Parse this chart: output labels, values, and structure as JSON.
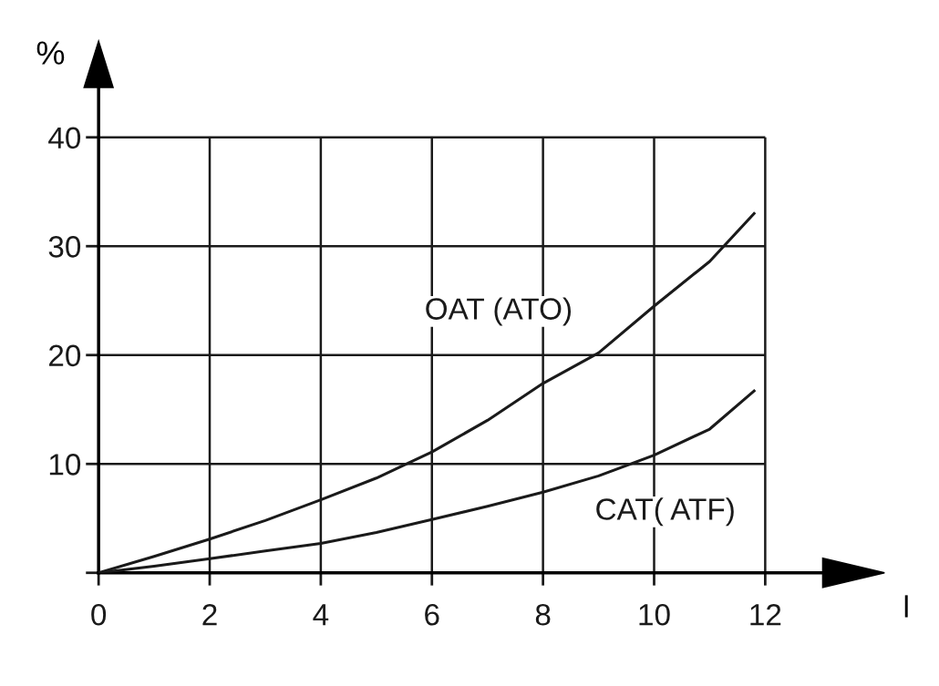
{
  "chart_data": {
    "type": "line",
    "xlabel": "l",
    "ylabel": "%",
    "x": [
      0,
      1,
      2,
      3,
      4,
      5,
      6,
      7,
      8,
      9,
      10,
      11,
      11.8
    ],
    "series": [
      {
        "name": "OAT (ATO)",
        "color": "#1a1a1a",
        "values": [
          0,
          1.5,
          3.1,
          4.8,
          6.7,
          8.7,
          11.1,
          14.0,
          17.4,
          20.2,
          24.5,
          28.6,
          33.0
        ]
      },
      {
        "name": "CAT( ATF)",
        "color": "#1a1a1a",
        "values": [
          0,
          0.6,
          1.3,
          2.0,
          2.7,
          3.7,
          4.9,
          6.1,
          7.4,
          8.9,
          10.8,
          13.2,
          16.7
        ]
      }
    ],
    "xlim": [
      0,
      13.1
    ],
    "ylim": [
      0,
      44.8
    ],
    "xticks": [
      0,
      2,
      4,
      6,
      8,
      10,
      12
    ],
    "yticks": [
      {
        "value": 0,
        "label": null
      },
      10,
      20,
      30,
      40
    ],
    "grid": true,
    "legend": false,
    "line_style": "solid",
    "marker": "none"
  }
}
